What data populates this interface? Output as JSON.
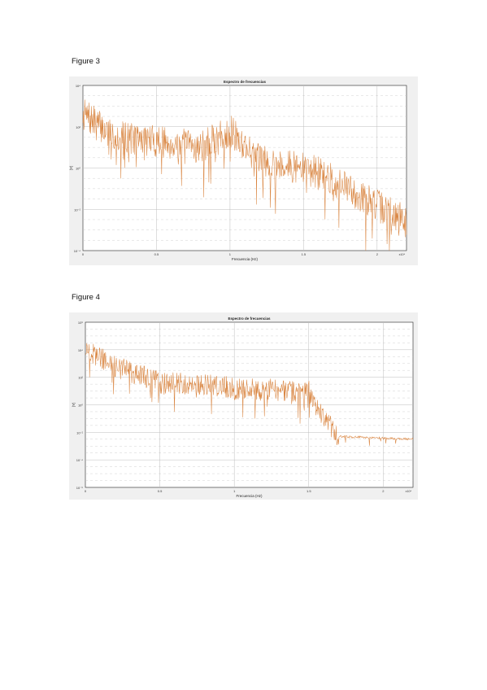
{
  "figures": [
    {
      "label": "Figure 3",
      "chart_data": {
        "type": "line",
        "title": "Espectro de frecuencias",
        "xlabel": "Frecuencia (Hz)",
        "ylabel": "|Y|",
        "xtick_labels": [
          "0",
          "0.5",
          "1",
          "1.5",
          "2",
          "x10⁴"
        ],
        "ytick_labels": [
          "10⁴",
          "10²",
          "10⁰",
          "10⁻²",
          "10⁻⁴"
        ],
        "x_range": [
          0,
          2.2
        ],
        "y_range_log10": [
          -4,
          4
        ],
        "log_y": true,
        "grid": true,
        "color": "#d9843f",
        "envelope": [
          [
            0,
            2.6
          ],
          [
            0.2,
            1.6
          ],
          [
            0.5,
            1.3
          ],
          [
            0.8,
            1.0
          ],
          [
            1.0,
            1.8
          ],
          [
            1.2,
            0.4
          ],
          [
            1.6,
            -0.2
          ],
          [
            1.9,
            -1.4
          ],
          [
            2.2,
            -2.6
          ]
        ]
      }
    },
    {
      "label": "Figure 4",
      "chart_data": {
        "type": "line",
        "title": "Espectro de frecuencias",
        "xlabel": "Frecuencia (Hz)",
        "ylabel": "|Y|",
        "xtick_labels": [
          "0",
          "0.5",
          "1",
          "1.5",
          "2",
          "x10⁴"
        ],
        "ytick_labels": [
          "10⁶",
          "10⁴",
          "10²",
          "10⁰",
          "10⁻²",
          "10⁻⁴",
          "10⁻⁶"
        ],
        "x_range": [
          0,
          2.2
        ],
        "y_range_log10": [
          -6,
          6
        ],
        "log_y": true,
        "grid": true,
        "color": "#d9843f",
        "envelope": [
          [
            0,
            4.0
          ],
          [
            0.2,
            2.8
          ],
          [
            0.5,
            1.6
          ],
          [
            0.8,
            1.5
          ],
          [
            1.0,
            1.2
          ],
          [
            1.5,
            1.0
          ],
          [
            1.6,
            -1.0
          ],
          [
            1.7,
            -2.3
          ],
          [
            2.2,
            -2.5
          ]
        ]
      }
    }
  ]
}
